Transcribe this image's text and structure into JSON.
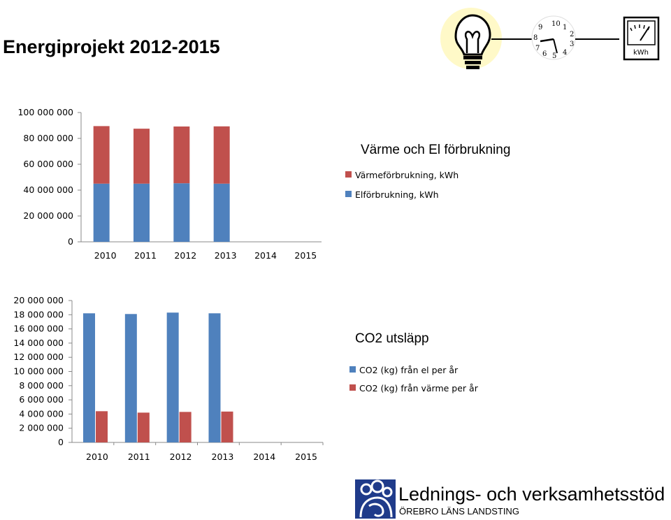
{
  "page": {
    "title": "Energiprojekt 2012-2015"
  },
  "icons": [
    "lightbulb-icon",
    "clock-icon",
    "kwh-meter-icon"
  ],
  "meter": {
    "label": "kWh"
  },
  "colors": {
    "blue": "#4f81bd",
    "red": "#c0504d"
  },
  "chart_data": [
    {
      "type": "bar",
      "stacked": true,
      "title": "Värme och El förbrukning",
      "categories": [
        "2010",
        "2011",
        "2012",
        "2013",
        "2014",
        "2015"
      ],
      "series": [
        {
          "name": "Elförbrukning, kWh",
          "color": "#4f81bd",
          "values": [
            45000000,
            45000000,
            45300000,
            45000000,
            null,
            null
          ]
        },
        {
          "name": "Värmeförbrukning, kWh",
          "color": "#c0504d",
          "values": [
            44500000,
            42500000,
            43900000,
            44300000,
            null,
            null
          ]
        }
      ],
      "yticks": [
        "0",
        "20 000 000",
        "40 000 000",
        "60 000 000",
        "80 000 000",
        "100 000 000"
      ],
      "ylim": [
        0,
        100000000
      ],
      "legend_position": "right"
    },
    {
      "type": "bar",
      "stacked": false,
      "title": "CO2 utsläpp",
      "categories": [
        "2010",
        "2011",
        "2012",
        "2013",
        "2014",
        "2015"
      ],
      "series": [
        {
          "name": "CO2 (kg) från el per år",
          "color": "#4f81bd",
          "values": [
            18200000,
            18100000,
            18300000,
            18200000,
            null,
            null
          ]
        },
        {
          "name": "CO2 (kg) från värme per år",
          "color": "#c0504d",
          "values": [
            4400000,
            4200000,
            4300000,
            4350000,
            null,
            null
          ]
        }
      ],
      "yticks": [
        "0",
        "2 000 000",
        "4 000 000",
        "6 000 000",
        "8 000 000",
        "10 000 000",
        "12 000 000",
        "14 000 000",
        "16 000 000",
        "18 000 000",
        "20 000 000"
      ],
      "ylim": [
        0,
        20000000
      ],
      "legend_position": "right"
    }
  ],
  "footer": {
    "org_name": "Lednings- och verksamhetsstöd",
    "org_sub": "ÖREBRO LÄNS LANDSTING"
  }
}
